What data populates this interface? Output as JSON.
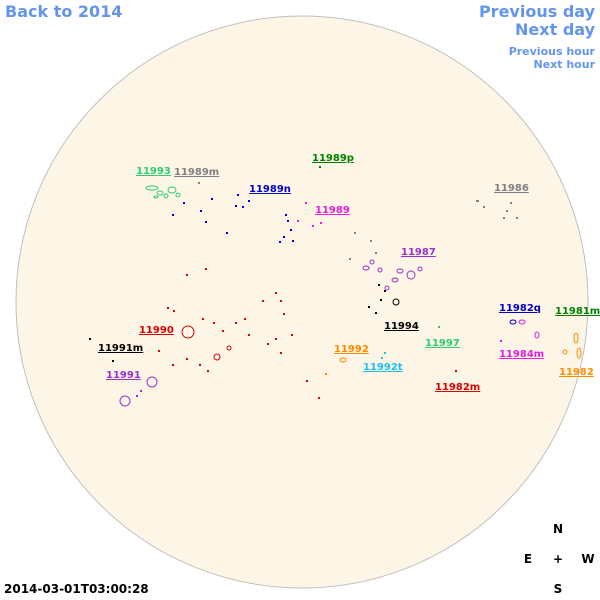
{
  "nav": {
    "back": "Back to 2014",
    "previous_day": "Previous day",
    "next_day": "Next day",
    "previous_hour": "Previous hour",
    "next_hour": "Next hour"
  },
  "colors": {
    "disk": "#fdf5e6",
    "disk_border": "#c0c0c0",
    "nav": "#6495ed"
  },
  "regions": [
    {
      "label": "11993",
      "color": "#2ecc71"
    },
    {
      "label": "11989m",
      "color": "#808080"
    },
    {
      "label": "11989p",
      "color": "#008000"
    },
    {
      "label": "11989n",
      "color": "#0000cd"
    },
    {
      "label": "11989",
      "color": "#e020e0"
    },
    {
      "label": "11986",
      "color": "#808080"
    },
    {
      "label": "11987",
      "color": "#9932cc"
    },
    {
      "label": "11994",
      "color": "#000000"
    },
    {
      "label": "11990",
      "color": "#dd0000"
    },
    {
      "label": "11991m",
      "color": "#000000"
    },
    {
      "label": "11991",
      "color": "#9932cc"
    },
    {
      "label": "11992",
      "color": "#ff8c00"
    },
    {
      "label": "11992t",
      "color": "#1ec0f0"
    },
    {
      "label": "11997",
      "color": "#2ecc71"
    },
    {
      "label": "11982q",
      "color": "#0000cd"
    },
    {
      "label": "11981m",
      "color": "#008000"
    },
    {
      "label": "11984m",
      "color": "#e020e0"
    },
    {
      "label": "11982m",
      "color": "#dd0000"
    },
    {
      "label": "11982",
      "color": "#ff8c00"
    }
  ],
  "timestamp": "2014-03-01T03:00:28",
  "compass": {
    "n": "N",
    "e": "E",
    "center": "+",
    "w": "W",
    "s": "S"
  }
}
